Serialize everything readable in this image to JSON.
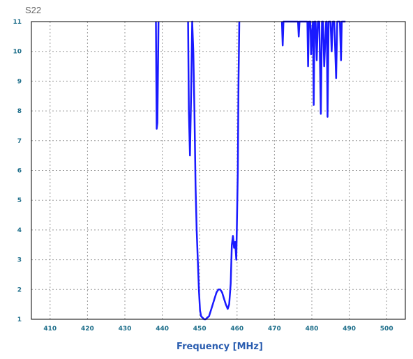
{
  "chart_data": {
    "type": "line",
    "title": "S22",
    "xlabel": "Frequency [MHz]",
    "ylabel": "",
    "xlim": [
      405,
      505
    ],
    "ylim": [
      1,
      11
    ],
    "xticks": [
      "410",
      "420",
      "430",
      "440",
      "450",
      "460",
      "470",
      "480",
      "490",
      "500"
    ],
    "yticks": [
      "1",
      "2",
      "3",
      "4",
      "5",
      "6",
      "7",
      "8",
      "9",
      "10",
      "11"
    ],
    "grid": true,
    "legend": "none",
    "colors": {
      "series": "#1a1aff",
      "axis_text": "#1f6f8b",
      "title_text": "#666666",
      "xlabel_text": "#2a5db0",
      "grid": "#999999",
      "frame": "#000000"
    },
    "series": [
      {
        "x": [
          438.3,
          438.5,
          438.7,
          439.0
        ],
        "y": [
          11,
          7.4,
          7.6,
          11
        ]
      },
      {
        "x": [
          446.9,
          447.1,
          447.4,
          447.7,
          448.0,
          448.3,
          448.6,
          448.9,
          449.2,
          449.5,
          449.8,
          450.1,
          450.4,
          450.8,
          451.2,
          451.6,
          452.0,
          452.5,
          453.0,
          453.5,
          454.0,
          454.5,
          455.0,
          455.5,
          456.0,
          456.5,
          457.0,
          457.5,
          457.9,
          458.3,
          458.6,
          458.9,
          459.2,
          459.5,
          459.8,
          460.0,
          460.2,
          460.4,
          460.6
        ],
        "y": [
          11,
          8.0,
          6.5,
          8.5,
          11,
          10.0,
          8.0,
          5.5,
          4.0,
          3.0,
          2.0,
          1.3,
          1.1,
          1.05,
          1.0,
          1.0,
          1.05,
          1.1,
          1.3,
          1.5,
          1.7,
          1.9,
          2.0,
          2.0,
          1.9,
          1.7,
          1.5,
          1.35,
          1.5,
          2.2,
          3.5,
          3.8,
          3.4,
          3.6,
          3.0,
          4.5,
          6.0,
          9.0,
          11
        ]
      },
      {
        "x": [
          472.0,
          472.2,
          472.4,
          476.3,
          476.5,
          476.7,
          477.0,
          478.8,
          479.0,
          479.2,
          479.6,
          479.8,
          480.0,
          480.3,
          480.5,
          480.7,
          481.0,
          481.3,
          481.6,
          482.0,
          482.4,
          482.7,
          483.0,
          483.3,
          483.8,
          484.0,
          484.2,
          484.5,
          485.0,
          485.3,
          485.6,
          486.0,
          486.5,
          486.8,
          487.0,
          487.5,
          487.8,
          488.0,
          488.6,
          488.8,
          489.0
        ],
        "y": [
          11,
          10.2,
          11,
          11,
          10.5,
          11,
          11,
          11,
          9.5,
          11,
          11,
          9.9,
          10.5,
          11,
          8.2,
          11,
          11,
          9.7,
          11,
          11,
          7.9,
          11,
          11,
          9.5,
          11,
          11,
          7.8,
          11,
          11,
          10.0,
          11,
          11,
          9.1,
          11,
          11,
          11,
          9.7,
          11,
          11,
          11,
          11
        ]
      }
    ]
  }
}
